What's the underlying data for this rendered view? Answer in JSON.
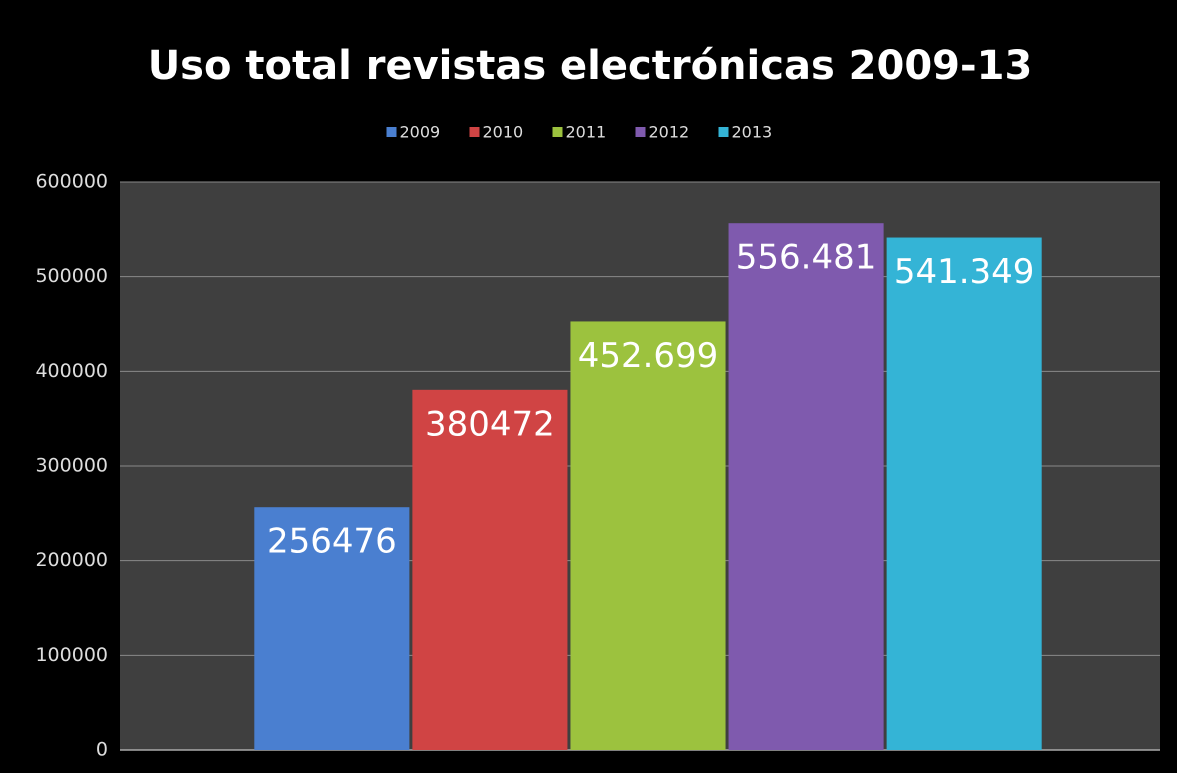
{
  "chart_data": {
    "type": "bar",
    "title": "Uso total revistas electrónicas 2009-13",
    "series": [
      {
        "name": "2009",
        "color": "#4a7fd0",
        "values": [
          256476
        ]
      },
      {
        "name": "2010",
        "color": "#d04444",
        "values": [
          380472
        ]
      },
      {
        "name": "2011",
        "color": "#9cc23e",
        "values": [
          452699
        ],
        "value_labels": [
          "452.699"
        ]
      },
      {
        "name": "2012",
        "color": "#7f5aae",
        "values": [
          556481
        ],
        "value_labels": [
          "556.481"
        ]
      },
      {
        "name": "2013",
        "color": "#34b4d6",
        "values": [
          541349
        ],
        "value_labels": [
          "541.349"
        ]
      }
    ],
    "ylim": [
      0,
      600000
    ],
    "yticks": [
      0,
      100000,
      200000,
      300000,
      400000,
      500000,
      600000
    ],
    "grid": true,
    "legend": "top"
  }
}
